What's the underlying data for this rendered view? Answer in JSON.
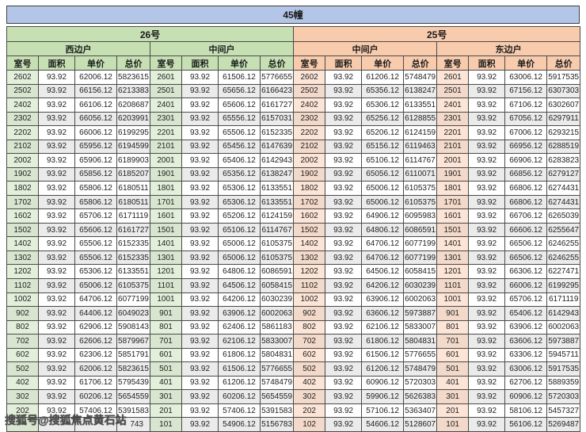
{
  "title": "45幢",
  "watermark": "搜狐号@搜狐焦点黄石站",
  "columns": [
    "室号",
    "面积",
    "单价",
    "总价"
  ],
  "colors": {
    "title_bg": "#b4c6e7",
    "building26_bg": "#c6e0b4",
    "building25_bg": "#f8cbad",
    "room_cell_green": "#e2efda",
    "room_cell_orange": "#fce4d6",
    "stripe": "#ebebeb",
    "border": "#4a4a4a"
  },
  "buildings": [
    {
      "name": "26号",
      "theme": "green",
      "units": [
        {
          "name": "西边户",
          "rows": [
            [
              "2602",
              "93.92",
              "62006.12",
              "5823615"
            ],
            [
              "2502",
              "93.92",
              "66156.12",
              "6213383"
            ],
            [
              "2402",
              "93.92",
              "66106.12",
              "6208687"
            ],
            [
              "2302",
              "93.92",
              "66056.12",
              "6203991"
            ],
            [
              "2202",
              "93.92",
              "66006.12",
              "6199295"
            ],
            [
              "2102",
              "93.92",
              "65956.12",
              "6194599"
            ],
            [
              "2002",
              "93.92",
              "65906.12",
              "6189903"
            ],
            [
              "1902",
              "93.92",
              "65856.12",
              "6185207"
            ],
            [
              "1802",
              "93.92",
              "65806.12",
              "6180511"
            ],
            [
              "1702",
              "93.92",
              "65806.12",
              "6180511"
            ],
            [
              "1602",
              "93.92",
              "65706.12",
              "6171119"
            ],
            [
              "1502",
              "93.92",
              "65606.12",
              "6161727"
            ],
            [
              "1402",
              "93.92",
              "65506.12",
              "6152335"
            ],
            [
              "1302",
              "93.92",
              "65506.12",
              "6152335"
            ],
            [
              "1202",
              "93.92",
              "65306.12",
              "6133551"
            ],
            [
              "1102",
              "93.92",
              "65006.12",
              "6105375"
            ],
            [
              "1002",
              "93.92",
              "64706.12",
              "6077199"
            ],
            [
              "902",
              "93.92",
              "64406.12",
              "6049023"
            ],
            [
              "802",
              "93.92",
              "62906.12",
              "5908143"
            ],
            [
              "702",
              "93.92",
              "62606.12",
              "5879967"
            ],
            [
              "602",
              "93.92",
              "62306.12",
              "5851791"
            ],
            [
              "502",
              "93.92",
              "62006.12",
              "5823615"
            ],
            [
              "402",
              "93.92",
              "61706.12",
              "5795439"
            ],
            [
              "302",
              "93.92",
              "60206.12",
              "5654559"
            ],
            [
              "202",
              "93.92",
              "57406.12",
              "5391583"
            ],
            [
              "",
              "",
              "",
              "743"
            ]
          ]
        },
        {
          "name": "中间户",
          "rows": [
            [
              "2601",
              "93.92",
              "61506.12",
              "5776655"
            ],
            [
              "2501",
              "93.92",
              "65656.12",
              "6166423"
            ],
            [
              "2401",
              "93.92",
              "65606.12",
              "6161727"
            ],
            [
              "2301",
              "93.92",
              "65556.12",
              "6157031"
            ],
            [
              "2201",
              "93.92",
              "65506.12",
              "6152335"
            ],
            [
              "2101",
              "93.92",
              "65456.12",
              "6147639"
            ],
            [
              "2001",
              "93.92",
              "65406.12",
              "6142943"
            ],
            [
              "1901",
              "93.92",
              "65356.12",
              "6138247"
            ],
            [
              "1801",
              "93.92",
              "65306.12",
              "6133551"
            ],
            [
              "1701",
              "93.92",
              "65306.12",
              "6133551"
            ],
            [
              "1601",
              "93.92",
              "65206.12",
              "6124159"
            ],
            [
              "1501",
              "93.92",
              "65106.12",
              "6114767"
            ],
            [
              "1401",
              "93.92",
              "65006.12",
              "6105375"
            ],
            [
              "1301",
              "93.92",
              "65006.12",
              "6105375"
            ],
            [
              "1201",
              "93.92",
              "64806.12",
              "6086591"
            ],
            [
              "1101",
              "93.92",
              "64506.12",
              "6058415"
            ],
            [
              "1001",
              "93.92",
              "64206.12",
              "6030239"
            ],
            [
              "901",
              "93.92",
              "63906.12",
              "6002063"
            ],
            [
              "801",
              "93.92",
              "62406.12",
              "5861183"
            ],
            [
              "701",
              "93.92",
              "62106.12",
              "5833007"
            ],
            [
              "601",
              "93.92",
              "61806.12",
              "5804831"
            ],
            [
              "501",
              "93.92",
              "61506.12",
              "5776655"
            ],
            [
              "401",
              "93.92",
              "61206.12",
              "5748479"
            ],
            [
              "301",
              "93.92",
              "60206.12",
              "5654559"
            ],
            [
              "201",
              "93.92",
              "57406.12",
              "5391583"
            ],
            [
              "101",
              "93.92",
              "54906.12",
              "5156783"
            ]
          ]
        }
      ]
    },
    {
      "name": "25号",
      "theme": "orange",
      "units": [
        {
          "name": "中间户",
          "rows": [
            [
              "2602",
              "93.92",
              "61206.12",
              "5748479"
            ],
            [
              "2502",
              "93.92",
              "65356.12",
              "6138247"
            ],
            [
              "2402",
              "93.92",
              "65306.12",
              "6133551"
            ],
            [
              "2302",
              "93.92",
              "65256.12",
              "6128855"
            ],
            [
              "2202",
              "93.92",
              "65206.12",
              "6124159"
            ],
            [
              "2102",
              "93.92",
              "65156.12",
              "6119463"
            ],
            [
              "2002",
              "93.92",
              "65106.12",
              "6114767"
            ],
            [
              "1902",
              "93.92",
              "65056.12",
              "6110071"
            ],
            [
              "1802",
              "93.92",
              "65006.12",
              "6105375"
            ],
            [
              "1702",
              "93.92",
              "65006.12",
              "6105375"
            ],
            [
              "1602",
              "93.92",
              "64906.12",
              "6095983"
            ],
            [
              "1502",
              "93.92",
              "64806.12",
              "6086591"
            ],
            [
              "1402",
              "93.92",
              "64706.12",
              "6077199"
            ],
            [
              "1302",
              "93.92",
              "64706.12",
              "6077199"
            ],
            [
              "1202",
              "93.92",
              "64506.12",
              "6058415"
            ],
            [
              "1102",
              "93.92",
              "64206.12",
              "6030239"
            ],
            [
              "1002",
              "93.92",
              "63906.12",
              "6002063"
            ],
            [
              "902",
              "93.92",
              "63606.12",
              "5973887"
            ],
            [
              "802",
              "93.92",
              "62106.12",
              "5833007"
            ],
            [
              "702",
              "93.92",
              "61806.12",
              "5804831"
            ],
            [
              "602",
              "93.92",
              "61506.12",
              "5776655"
            ],
            [
              "502",
              "93.92",
              "61206.12",
              "5748479"
            ],
            [
              "402",
              "93.92",
              "60906.12",
              "5720303"
            ],
            [
              "302",
              "93.92",
              "59906.12",
              "5626383"
            ],
            [
              "202",
              "93.92",
              "57106.12",
              "5363407"
            ],
            [
              "102",
              "93.92",
              "54606.12",
              "5128607"
            ]
          ]
        },
        {
          "name": "东边户",
          "rows": [
            [
              "2601",
              "93.92",
              "63006.12",
              "5917535"
            ],
            [
              "2501",
              "93.92",
              "67156.12",
              "6307303"
            ],
            [
              "2401",
              "93.92",
              "67106.12",
              "6302607"
            ],
            [
              "2301",
              "93.92",
              "67056.12",
              "6297911"
            ],
            [
              "2201",
              "93.92",
              "67006.12",
              "6293215"
            ],
            [
              "2101",
              "93.92",
              "66956.12",
              "6288519"
            ],
            [
              "2001",
              "93.92",
              "66906.12",
              "6283823"
            ],
            [
              "1901",
              "93.92",
              "66856.12",
              "6279127"
            ],
            [
              "1801",
              "93.92",
              "66806.12",
              "6274431"
            ],
            [
              "1701",
              "93.92",
              "66806.12",
              "6274431"
            ],
            [
              "1601",
              "93.92",
              "66706.12",
              "6265039"
            ],
            [
              "1501",
              "93.92",
              "66606.12",
              "6255647"
            ],
            [
              "1401",
              "93.92",
              "66506.12",
              "6246255"
            ],
            [
              "1301",
              "93.92",
              "66506.12",
              "6246255"
            ],
            [
              "1201",
              "93.92",
              "66306.12",
              "6227471"
            ],
            [
              "1101",
              "93.92",
              "66006.12",
              "6199295"
            ],
            [
              "1001",
              "93.92",
              "65706.12",
              "6171119"
            ],
            [
              "901",
              "93.92",
              "65406.12",
              "6142943"
            ],
            [
              "801",
              "93.92",
              "63906.12",
              "6002063"
            ],
            [
              "701",
              "93.92",
              "63606.12",
              "5973887"
            ],
            [
              "601",
              "93.92",
              "63306.12",
              "5945711"
            ],
            [
              "501",
              "93.92",
              "63006.12",
              "5917535"
            ],
            [
              "401",
              "93.92",
              "62706.12",
              "5889359"
            ],
            [
              "301",
              "93.92",
              "60906.12",
              "5720303"
            ],
            [
              "201",
              "93.92",
              "58106.12",
              "5457327"
            ],
            [
              "101",
              "93.92",
              "56106.12",
              "5269487"
            ]
          ]
        }
      ]
    }
  ]
}
